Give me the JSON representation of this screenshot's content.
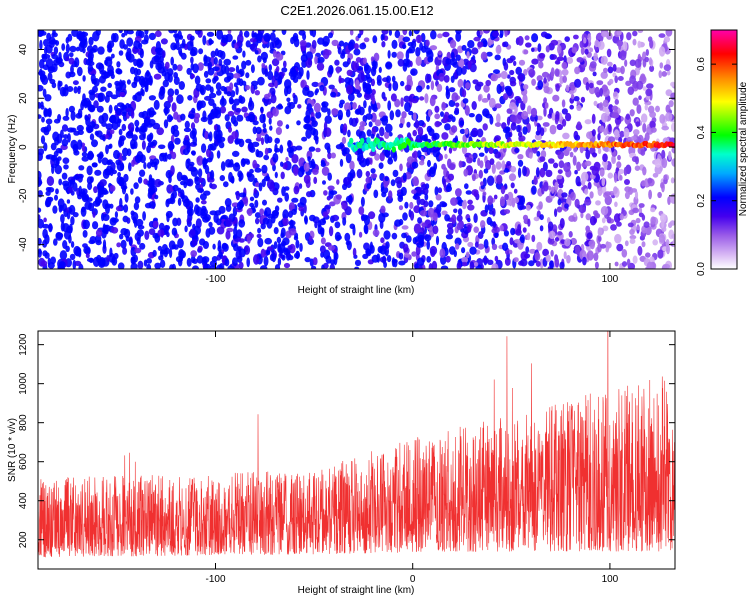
{
  "title": "C2E1.2026.061.15.00.E12",
  "chart_data": [
    {
      "type": "heatmap",
      "xlabel": "Height of straight line (km)",
      "ylabel": "Frequency (Hz)",
      "xlim": [
        -190,
        133
      ],
      "ylim": [
        -50,
        48
      ],
      "xticks": [
        -100,
        0,
        100
      ],
      "yticks": [
        -40,
        -20,
        0,
        20,
        40
      ],
      "colorbar": {
        "label": "Normalized spectral amplitude",
        "range": [
          0,
          0.7
        ],
        "ticks": [
          0.0,
          0.2,
          0.4,
          0.6
        ],
        "colors": [
          "#ffffff",
          "#b888ee",
          "#6600ee",
          "#0000ff",
          "#00ffff",
          "#00ff00",
          "#ffff00",
          "#ff7700",
          "#ff0000",
          "#ff00aa"
        ]
      },
      "features": {
        "ridge_frequency_hz": 1,
        "ridge_start_km": -32,
        "ridge_end_km": 133
      }
    },
    {
      "type": "line",
      "xlabel": "Height of straight line (km)",
      "ylabel": "SNR (10 * v/v)",
      "xlim": [
        -190,
        133
      ],
      "ylim": [
        50,
        1270
      ],
      "xticks": [
        -100,
        0,
        100
      ],
      "yticks": [
        200,
        400,
        600,
        800,
        1000,
        1200
      ],
      "color": "#f03030",
      "envelope": {
        "x": [
          -190,
          -100,
          -50,
          0,
          50,
          100,
          133
        ],
        "low": [
          110,
          120,
          125,
          135,
          140,
          140,
          140
        ],
        "high": [
          520,
          540,
          560,
          720,
          850,
          980,
          1060
        ]
      }
    }
  ]
}
